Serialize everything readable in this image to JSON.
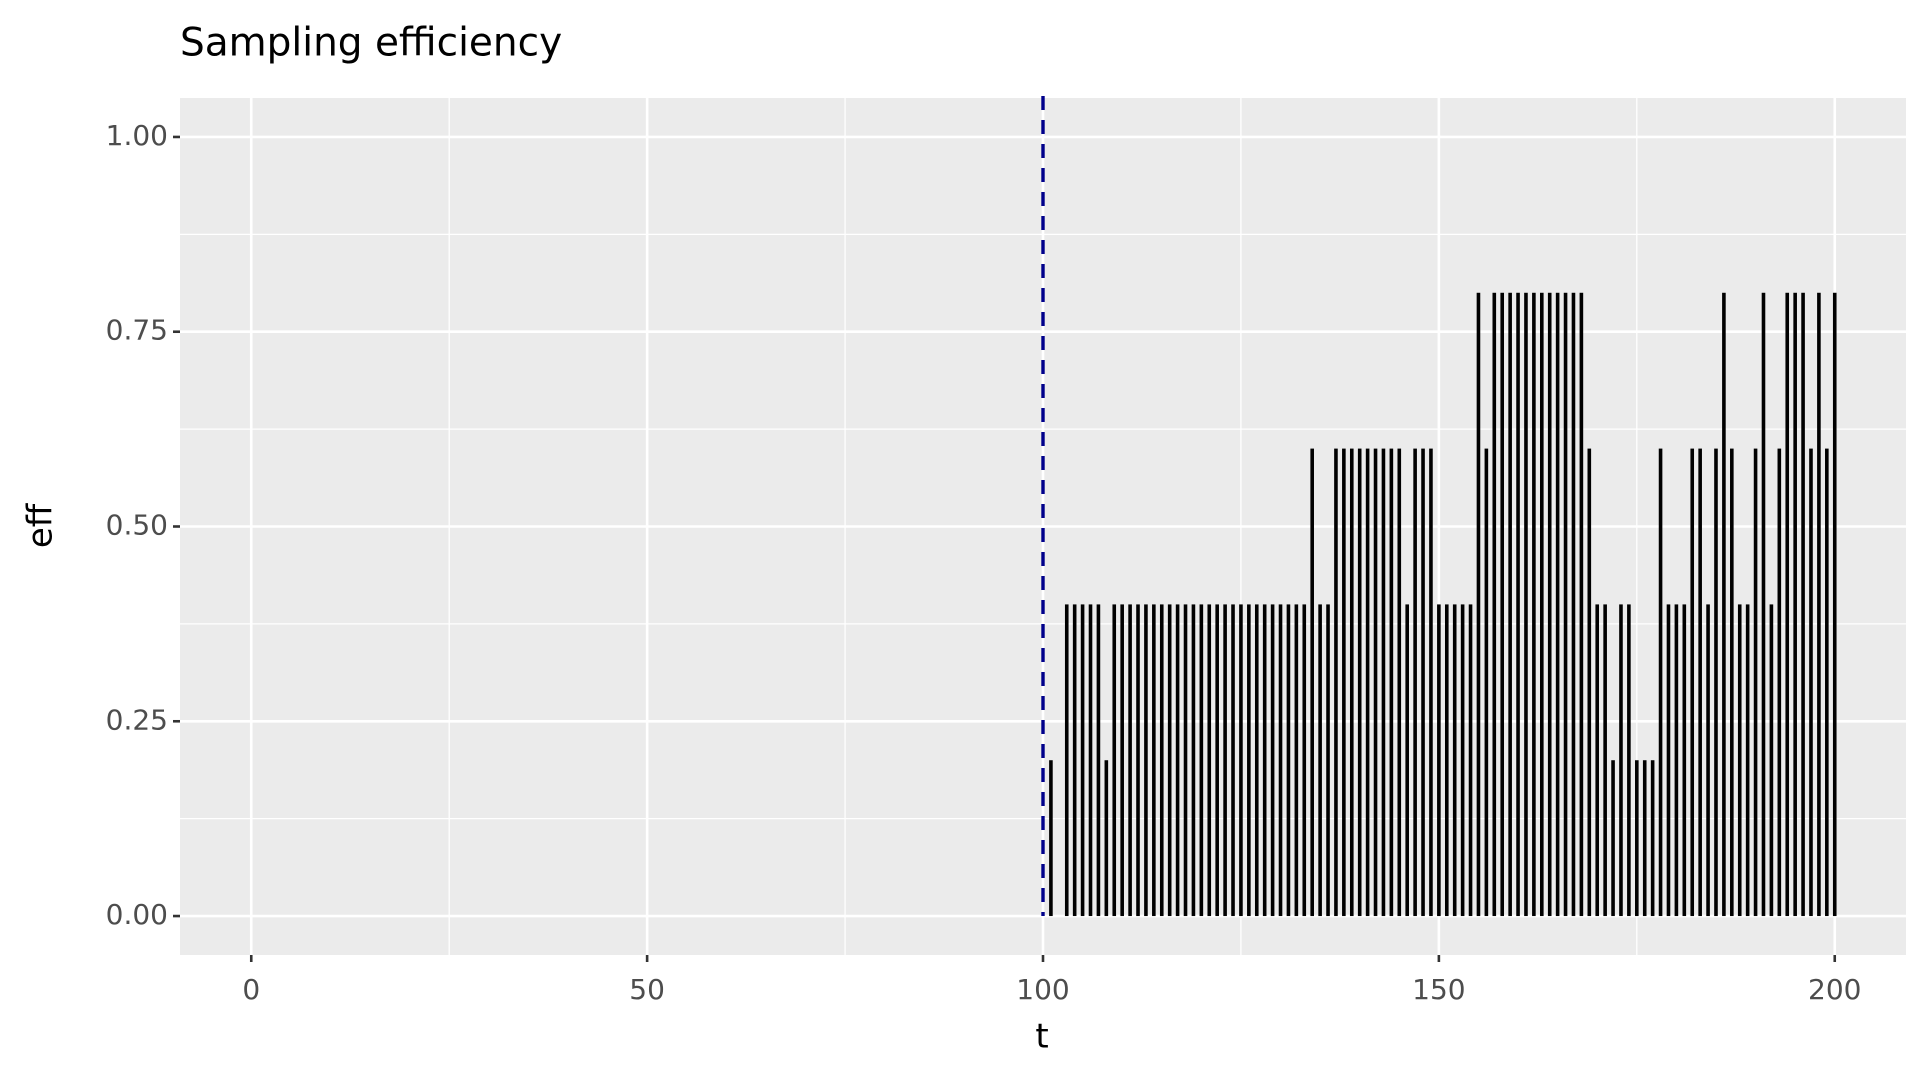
{
  "chart_data": {
    "type": "bar",
    "title": "Sampling efficiency",
    "xlabel": "t",
    "ylabel": "eff",
    "x": [
      101,
      102,
      103,
      104,
      105,
      106,
      107,
      108,
      109,
      110,
      111,
      112,
      113,
      114,
      115,
      116,
      117,
      118,
      119,
      120,
      121,
      122,
      123,
      124,
      125,
      126,
      127,
      128,
      129,
      130,
      131,
      132,
      133,
      134,
      135,
      136,
      137,
      138,
      139,
      140,
      141,
      142,
      143,
      144,
      145,
      146,
      147,
      148,
      149,
      150,
      151,
      152,
      153,
      154,
      155,
      156,
      157,
      158,
      159,
      160,
      161,
      162,
      163,
      164,
      165,
      166,
      167,
      168,
      169,
      170,
      171,
      172,
      173,
      174,
      175,
      176,
      177,
      178,
      179,
      180,
      181,
      182,
      183,
      184,
      185,
      186,
      187,
      188,
      189,
      190,
      191,
      192,
      193,
      194,
      195,
      196,
      197,
      198,
      199,
      200
    ],
    "values": [
      0.2,
      0,
      0.4,
      0.4,
      0.4,
      0.4,
      0.4,
      0.2,
      0.4,
      0.4,
      0.4,
      0.4,
      0.4,
      0.4,
      0.4,
      0.4,
      0.4,
      0.4,
      0.4,
      0.4,
      0.4,
      0.4,
      0.4,
      0.4,
      0.4,
      0.4,
      0.4,
      0.4,
      0.4,
      0.4,
      0.4,
      0.4,
      0.4,
      0.6,
      0.4,
      0.4,
      0.6,
      0.6,
      0.6,
      0.6,
      0.6,
      0.6,
      0.6,
      0.6,
      0.6,
      0.4,
      0.6,
      0.6,
      0.6,
      0.4,
      0.4,
      0.4,
      0.4,
      0.4,
      0.8,
      0.6,
      0.8,
      0.8,
      0.8,
      0.8,
      0.8,
      0.8,
      0.8,
      0.8,
      0.8,
      0.8,
      0.8,
      0.8,
      0.6,
      0.4,
      0.4,
      0.2,
      0.4,
      0.4,
      0.2,
      0.2,
      0.2,
      0.6,
      0.4,
      0.4,
      0.4,
      0.6,
      0.6,
      0.4,
      0.6,
      0.8,
      0.6,
      0.4,
      0.4,
      0.6,
      0.8,
      0.4,
      0.6,
      0.8,
      0.8,
      0.8,
      0.6,
      0.8,
      0.6,
      0.8
    ],
    "color": "#000000",
    "vline": 100,
    "vline_color": "#00008b",
    "xlim": [
      -9,
      209
    ],
    "xticks": [
      0,
      50,
      100,
      150,
      200
    ],
    "ylim": [
      -0.05,
      1.05
    ],
    "yticks": [
      {
        "value": 0,
        "label": "0.00"
      },
      {
        "value": 0.25,
        "label": "0.25"
      },
      {
        "value": 0.5,
        "label": "0.50"
      },
      {
        "value": 0.75,
        "label": "0.75"
      },
      {
        "value": 1,
        "label": "1.00"
      }
    ],
    "grid": true
  }
}
